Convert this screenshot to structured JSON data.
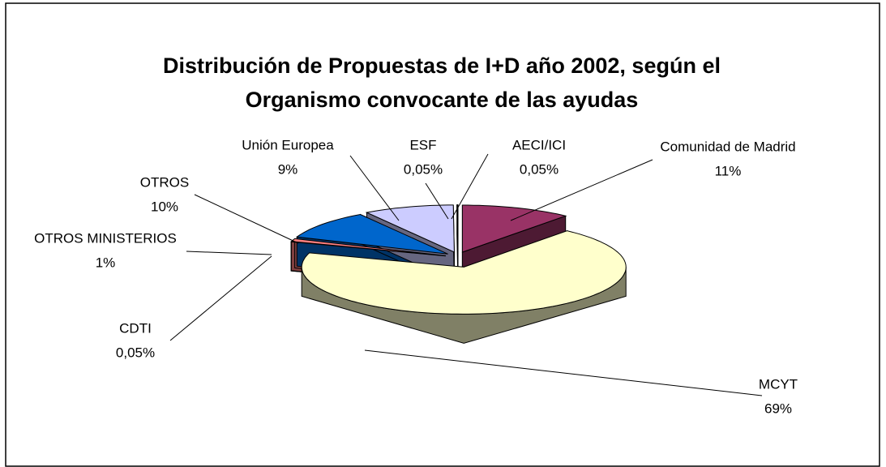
{
  "chart_data": {
    "type": "pie3d",
    "title": [
      "Distribución de Propuestas de I+D año 2002, según el",
      "Organismo convocante de las ayudas"
    ],
    "categories": [
      "Comunidad de Madrid",
      "MCYT",
      "CDTI",
      "OTROS MINISTERIOS",
      "OTROS",
      "Unión Europea",
      "ESF",
      "AECI/ICI"
    ],
    "values": [
      11,
      69,
      0.05,
      1,
      10,
      9,
      0.05,
      0.05
    ],
    "value_labels": [
      "11%",
      "69%",
      "0,05%",
      "1%",
      "10%",
      "9%",
      "0,05%",
      "0,05%"
    ],
    "colors": [
      "#993366",
      "#ffffcc",
      "#ccffff",
      "#ff8080",
      "#0066cc",
      "#ccccff",
      "#ffffff",
      "#000080"
    ]
  }
}
